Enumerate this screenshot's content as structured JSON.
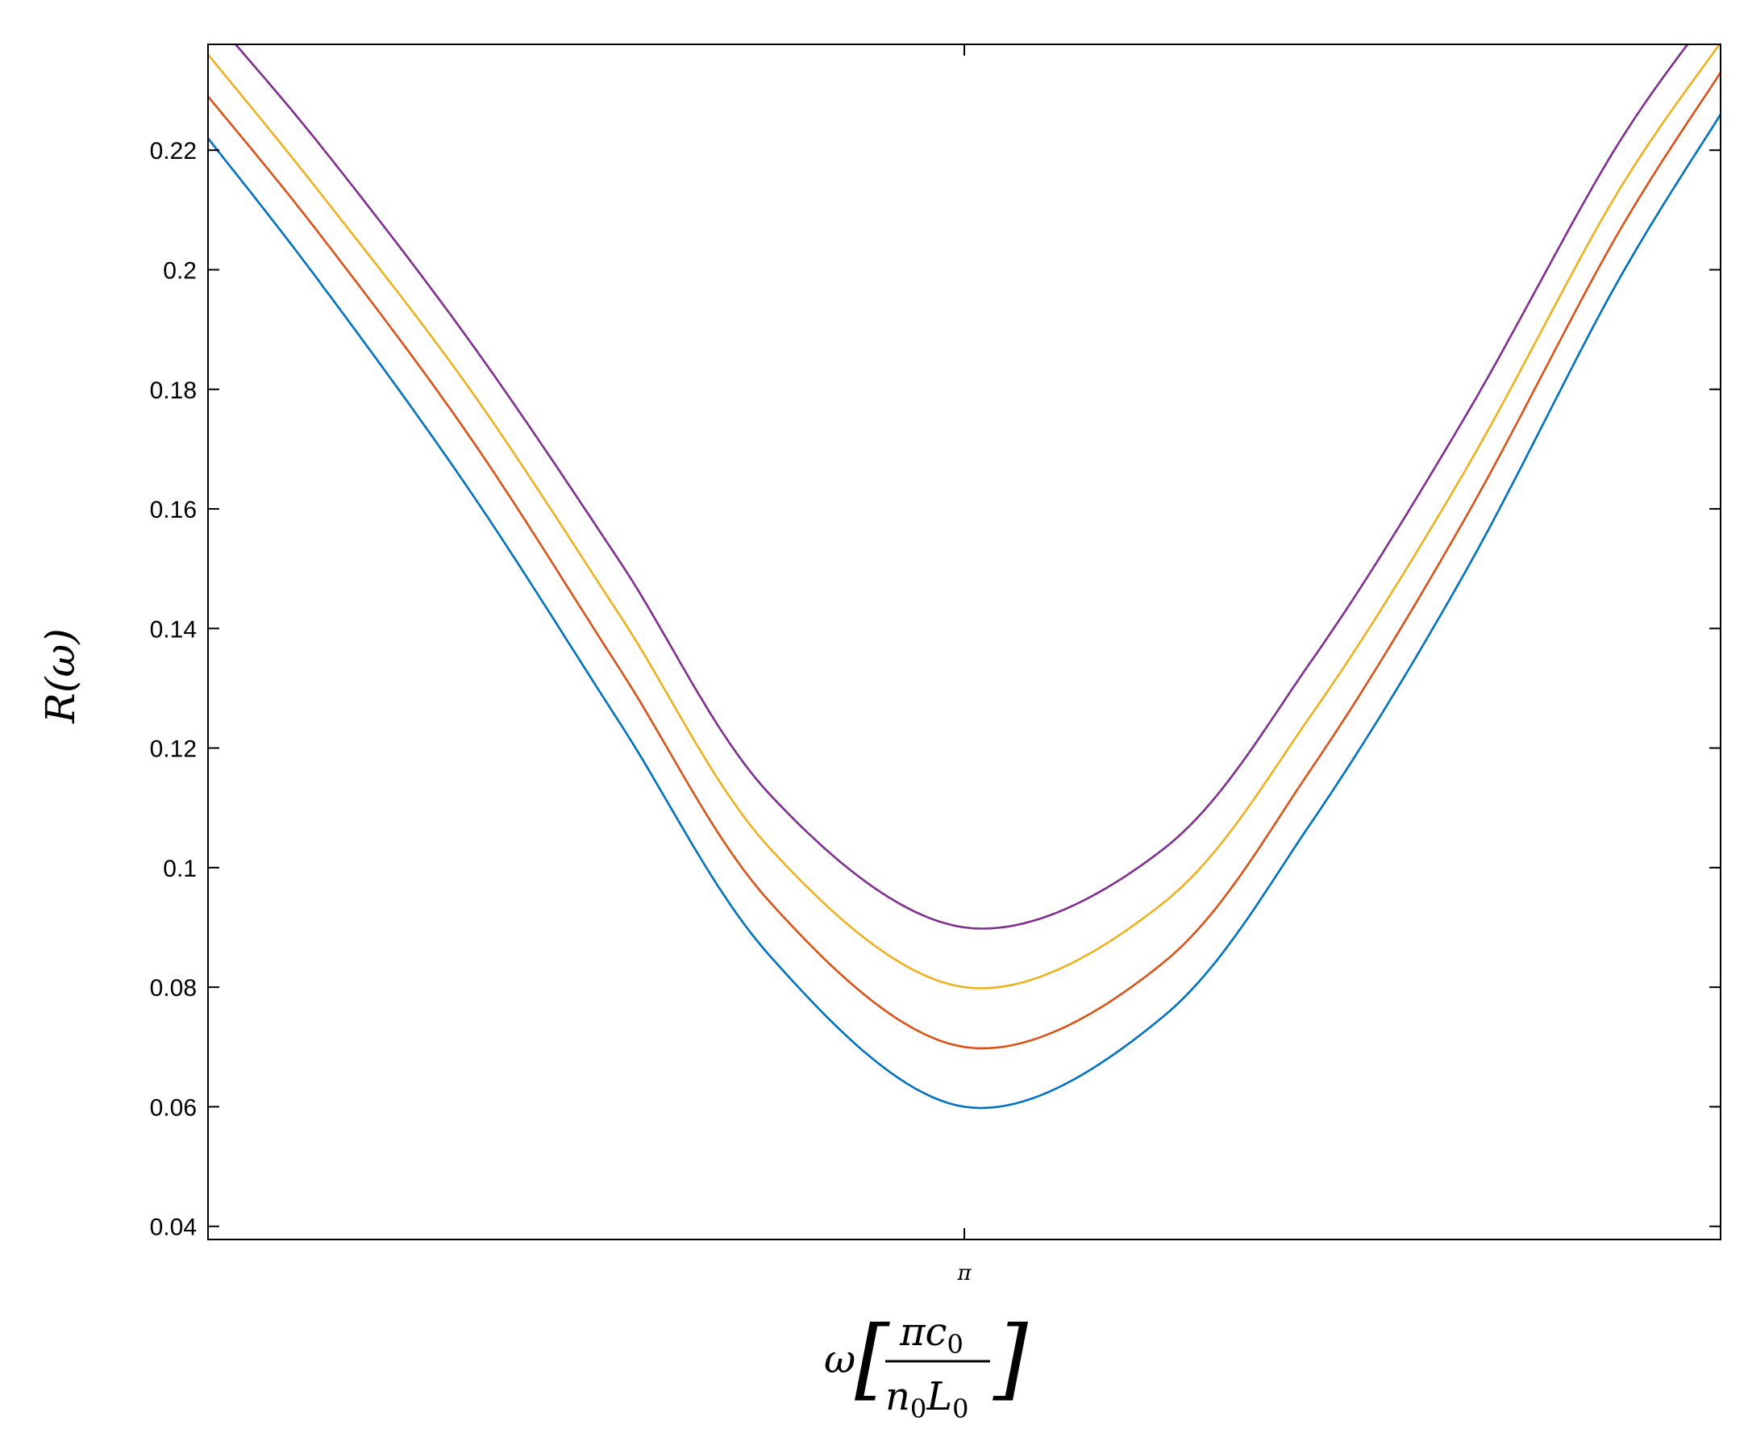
{
  "chart_data": {
    "type": "line",
    "title": "",
    "ylabel": "R(ω)",
    "xlabel": {
      "prefix": "ω",
      "numerator": "πc",
      "numerator_sub": "0",
      "denominator_n": "n",
      "denominator_n_sub": "0",
      "denominator_L": "L",
      "denominator_L_sub": "0"
    },
    "x_ticks": [
      {
        "value": 3.14159,
        "label": "π"
      }
    ],
    "xlim": [
      0.63,
      5.653
    ],
    "ylim": [
      0.0378,
      0.2377
    ],
    "y_ticks": [
      0.04,
      0.06,
      0.08,
      0.1,
      0.12,
      0.14,
      0.16,
      0.18,
      0.2,
      0.22
    ],
    "y_tick_labels": [
      "0.04",
      "0.06",
      "0.08",
      "0.1",
      "0.12",
      "0.14",
      "0.16",
      "0.18",
      "0.2",
      "0.22"
    ],
    "grid": false,
    "legend": "none",
    "series": [
      {
        "color": "#0072BD",
        "x": [
          0.63,
          1.0,
          1.5,
          2.0,
          2.5,
          3.14159,
          3.8,
          4.3,
          4.8,
          5.3,
          5.653
        ],
        "y": [
          0.222,
          0.198,
          0.163,
          0.124,
          0.085,
          0.06,
          0.075,
          0.108,
          0.149,
          0.197,
          0.226
        ]
      },
      {
        "color": "#D95319",
        "x": [
          0.63,
          1.0,
          1.5,
          2.0,
          2.5,
          3.14159,
          3.8,
          4.3,
          4.8,
          5.3,
          5.653
        ],
        "y": [
          0.229,
          0.206,
          0.172,
          0.133,
          0.094,
          0.07,
          0.084,
          0.117,
          0.158,
          0.205,
          0.233
        ]
      },
      {
        "color": "#EDB120",
        "x": [
          0.63,
          1.0,
          1.5,
          2.0,
          2.5,
          3.14159,
          3.8,
          4.3,
          4.8,
          5.3,
          5.653
        ],
        "y": [
          0.236,
          0.213,
          0.18,
          0.142,
          0.103,
          0.08,
          0.094,
          0.126,
          0.166,
          0.212,
          0.238
        ]
      },
      {
        "color": "#7E2F8E",
        "x": [
          0.63,
          1.0,
          1.5,
          2.0,
          2.5,
          3.14159,
          3.8,
          4.3,
          4.8,
          5.3,
          5.653
        ],
        "y": [
          0.243,
          0.221,
          0.188,
          0.151,
          0.112,
          0.09,
          0.103,
          0.135,
          0.175,
          0.22,
          0.245
        ]
      }
    ]
  }
}
